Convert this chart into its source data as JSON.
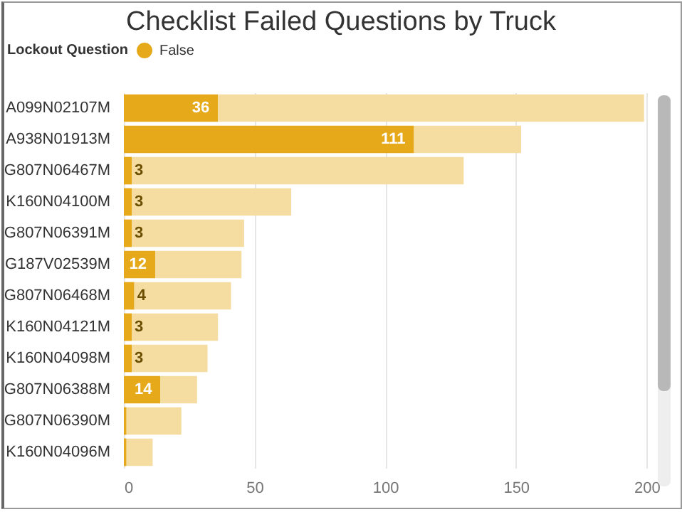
{
  "chart_data": {
    "type": "bar",
    "orientation": "horizontal",
    "title": "Checklist Failed Questions by Truck",
    "legend_title": "Lockout Question",
    "legend": "top left",
    "grid": "x",
    "categories": [
      "A099N02107M",
      "A938N01913M",
      "G807N06467M",
      "K160N04100M",
      "G807N06391M",
      "G187V02539M",
      "G807N06468M",
      "K160N04121M",
      "K160N04098M",
      "G807N06388M",
      "G807N06390M",
      "K160N04096M"
    ],
    "stacked": true,
    "series": [
      {
        "name": "False",
        "color": "#e5a919",
        "values": [
          36,
          111,
          3,
          3,
          3,
          12,
          4,
          3,
          3,
          14,
          1,
          1
        ],
        "value_labels": [
          "36",
          "111",
          "3",
          "3",
          "3",
          "12",
          "4",
          "3",
          "3",
          "14",
          null,
          null
        ]
      },
      {
        "color": "#f5dca0",
        "values": [
          163,
          41,
          127,
          61,
          43,
          33,
          37,
          33,
          29,
          14,
          21,
          10
        ]
      }
    ],
    "xlim": [
      0,
      201
    ],
    "xticks": [
      0,
      50,
      100,
      150,
      200
    ]
  }
}
